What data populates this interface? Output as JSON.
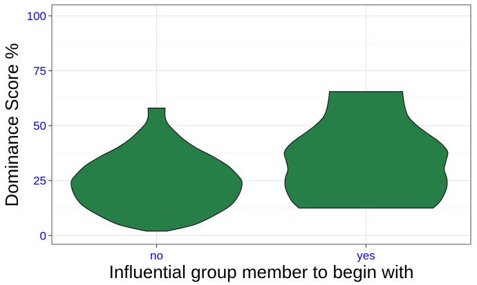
{
  "chart_data": {
    "type": "violin",
    "title": "",
    "xlabel": "Influential group member to begin with",
    "ylabel": "Dominance Score %",
    "categories": [
      "no",
      "yes"
    ],
    "ylim": [
      -4,
      105
    ],
    "yticks": [
      0,
      25,
      50,
      75,
      100
    ],
    "grid": true,
    "legend": "none",
    "colors": {
      "fill": "#277F48",
      "outline": "#1a1a1a",
      "tick_label": "#0000FF",
      "grid": "#e6e6e6",
      "panel_border": "#4d4d4d"
    },
    "violins": [
      {
        "category": "no",
        "min": 2,
        "max": 58,
        "density_profile": [
          [
            2,
            0.12
          ],
          [
            5,
            0.45
          ],
          [
            10,
            0.72
          ],
          [
            14,
            0.88
          ],
          [
            18,
            0.96
          ],
          [
            22,
            1.0
          ],
          [
            25,
            1.0
          ],
          [
            28,
            0.94
          ],
          [
            32,
            0.83
          ],
          [
            36,
            0.66
          ],
          [
            40,
            0.46
          ],
          [
            44,
            0.31
          ],
          [
            48,
            0.2
          ],
          [
            51,
            0.13
          ],
          [
            54,
            0.1
          ],
          [
            58,
            0.1
          ]
        ]
      },
      {
        "category": "yes",
        "min": 12.5,
        "max": 65.5,
        "density_profile": [
          [
            12.5,
            0.79
          ],
          [
            15,
            0.86
          ],
          [
            18,
            0.91
          ],
          [
            22,
            0.95
          ],
          [
            26,
            0.95
          ],
          [
            30,
            0.92
          ],
          [
            34,
            0.94
          ],
          [
            38,
            0.96
          ],
          [
            42,
            0.88
          ],
          [
            46,
            0.74
          ],
          [
            50,
            0.6
          ],
          [
            54,
            0.5
          ],
          [
            58,
            0.46
          ],
          [
            62,
            0.44
          ],
          [
            65.5,
            0.43
          ]
        ]
      }
    ]
  }
}
